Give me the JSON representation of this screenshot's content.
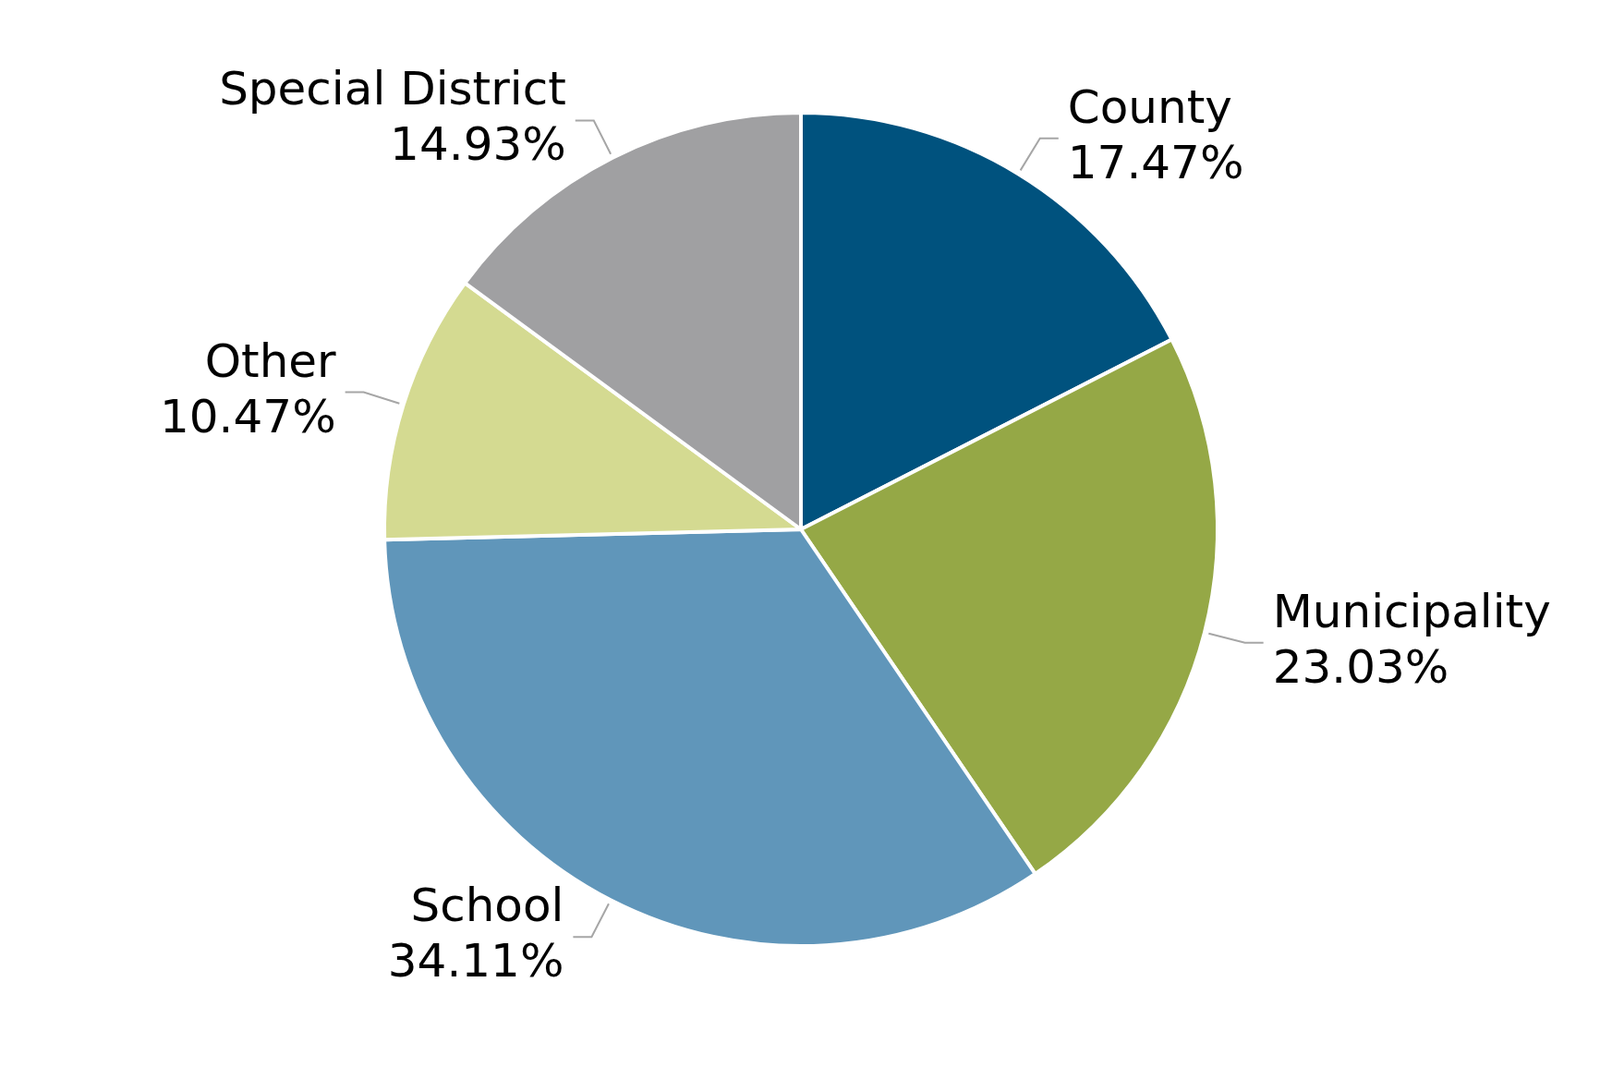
{
  "chart_data": {
    "type": "pie",
    "categories": [
      "County",
      "Municipality",
      "School",
      "Other",
      "Special District"
    ],
    "values": [
      17.47,
      23.03,
      34.11,
      10.47,
      14.93
    ],
    "value_labels": [
      "17.47%",
      "23.03%",
      "34.11%",
      "10.47%",
      "14.93%"
    ],
    "colors": [
      "#00527e",
      "#95a846",
      "#6096ba",
      "#d4da91",
      "#a0a0a2"
    ],
    "data_labels": true
  }
}
